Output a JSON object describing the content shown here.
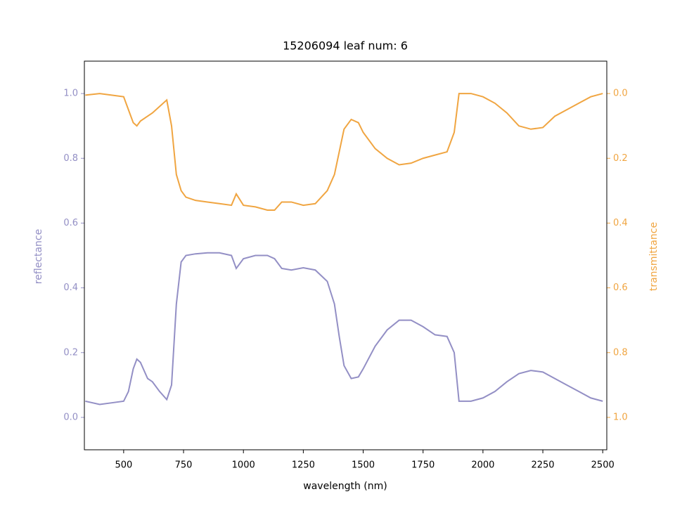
{
  "chart_data": {
    "type": "line",
    "title": "15206094 leaf num: 6",
    "x_label": "wavelength (nm)",
    "y_label": "reflectance",
    "y2_label": "transmittance",
    "x": [
      340,
      400,
      450,
      500,
      520,
      540,
      555,
      570,
      600,
      620,
      650,
      680,
      700,
      720,
      740,
      760,
      800,
      850,
      900,
      950,
      970,
      1000,
      1050,
      1100,
      1130,
      1160,
      1200,
      1250,
      1300,
      1350,
      1380,
      1400,
      1420,
      1450,
      1480,
      1500,
      1550,
      1600,
      1650,
      1700,
      1750,
      1800,
      1850,
      1880,
      1900,
      1950,
      2000,
      2050,
      2100,
      2150,
      2200,
      2250,
      2300,
      2350,
      2400,
      2450,
      2500
    ],
    "series": [
      {
        "name": "reflectance",
        "color": "#938fc5",
        "axis": "y",
        "values": [
          0.05,
          0.04,
          0.045,
          0.05,
          0.08,
          0.15,
          0.18,
          0.17,
          0.12,
          0.11,
          0.08,
          0.055,
          0.1,
          0.35,
          0.48,
          0.5,
          0.505,
          0.508,
          0.508,
          0.5,
          0.46,
          0.49,
          0.5,
          0.5,
          0.49,
          0.46,
          0.455,
          0.462,
          0.455,
          0.42,
          0.35,
          0.25,
          0.16,
          0.12,
          0.125,
          0.15,
          0.22,
          0.27,
          0.3,
          0.3,
          0.28,
          0.255,
          0.25,
          0.2,
          0.05,
          0.05,
          0.06,
          0.08,
          0.11,
          0.135,
          0.145,
          0.14,
          0.12,
          0.1,
          0.08,
          0.06,
          0.05
        ]
      },
      {
        "name": "transmittance",
        "color": "#f0a541",
        "axis": "y2",
        "values": [
          0.005,
          0.0,
          0.005,
          0.01,
          0.05,
          0.09,
          0.1,
          0.085,
          0.07,
          0.06,
          0.04,
          0.02,
          0.1,
          0.25,
          0.3,
          0.32,
          0.33,
          0.335,
          0.34,
          0.345,
          0.31,
          0.345,
          0.35,
          0.36,
          0.36,
          0.335,
          0.335,
          0.345,
          0.34,
          0.3,
          0.25,
          0.18,
          0.11,
          0.08,
          0.09,
          0.12,
          0.17,
          0.2,
          0.22,
          0.215,
          0.2,
          0.19,
          0.18,
          0.12,
          0.0,
          0.0,
          0.01,
          0.03,
          0.06,
          0.1,
          0.11,
          0.105,
          0.07,
          0.05,
          0.03,
          0.01,
          0.0
        ]
      }
    ],
    "xlim": [
      336,
      2517
    ],
    "xticks": [
      500,
      750,
      1000,
      1250,
      1500,
      1750,
      2000,
      2250,
      2500
    ],
    "ylim": [
      -0.1,
      1.1
    ],
    "yticks": [
      {
        "value": 0,
        "label": "0.0"
      },
      0.2,
      0.4,
      0.6,
      0.8,
      {
        "value": 1,
        "label": "1.0"
      }
    ],
    "y2lim": [
      1.1,
      -0.1
    ],
    "y2ticks": [
      {
        "value": 0,
        "label": "0.0"
      },
      0.2,
      0.4,
      0.6,
      0.8,
      {
        "value": 1,
        "label": "1.0"
      }
    ],
    "grid": false
  }
}
